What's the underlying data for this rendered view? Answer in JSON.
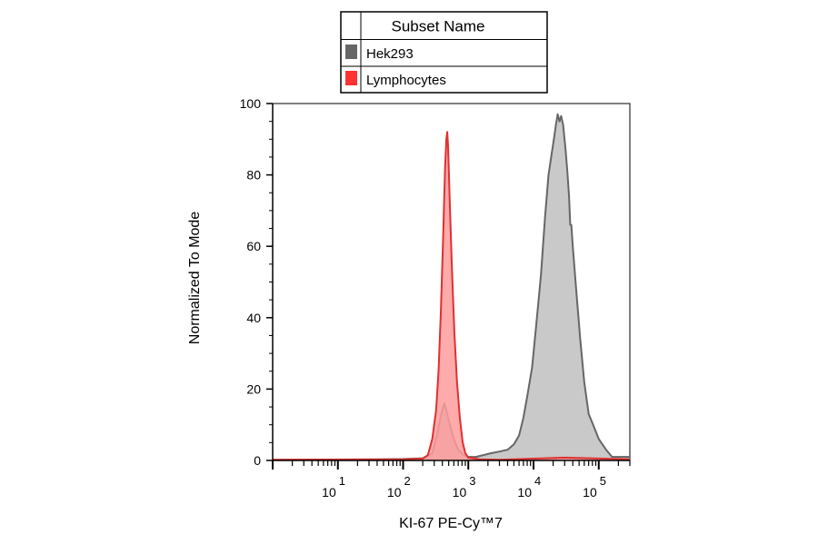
{
  "chart_data": {
    "type": "area",
    "xlabel": "KI-67 PE-Cy™7",
    "ylabel": "Normalized To Mode",
    "x_scale": "log",
    "xlim": [
      1,
      300000
    ],
    "ylim": [
      0,
      100
    ],
    "y_ticks": [
      0,
      20,
      40,
      60,
      80,
      100
    ],
    "x_tick_labels": [
      {
        "base": "10",
        "exp": "1",
        "value": 10
      },
      {
        "base": "10",
        "exp": "2",
        "value": 100
      },
      {
        "base": "10",
        "exp": "3",
        "value": 1000
      },
      {
        "base": "10",
        "exp": "4",
        "value": 10000
      },
      {
        "base": "10",
        "exp": "5",
        "value": 100000
      }
    ],
    "grid": false,
    "legend": {
      "header": "Subset Name",
      "placement": "top-center",
      "entries": [
        {
          "label": "Hek293",
          "color": "#666666"
        },
        {
          "label": "Lymphocytes",
          "color": "#ff3333"
        }
      ]
    },
    "series": [
      {
        "name": "Hek293",
        "stroke": "#666666",
        "fill": "#c0c0c0",
        "points": [
          [
            1,
            0.2
          ],
          [
            40,
            0.3
          ],
          [
            100,
            0.4
          ],
          [
            200,
            0.6
          ],
          [
            280,
            2
          ],
          [
            330,
            7
          ],
          [
            380,
            12.5
          ],
          [
            410,
            15
          ],
          [
            430,
            16
          ],
          [
            460,
            14
          ],
          [
            520,
            10
          ],
          [
            600,
            6
          ],
          [
            700,
            3
          ],
          [
            850,
            1.5
          ],
          [
            1000,
            1
          ],
          [
            1300,
            1
          ],
          [
            1700,
            1.5
          ],
          [
            2200,
            2
          ],
          [
            3000,
            2.5
          ],
          [
            4000,
            3
          ],
          [
            5000,
            4.5
          ],
          [
            6000,
            7
          ],
          [
            7000,
            12
          ],
          [
            8000,
            18
          ],
          [
            9500,
            26
          ],
          [
            11000,
            38
          ],
          [
            13000,
            52
          ],
          [
            15000,
            68
          ],
          [
            17000,
            80
          ],
          [
            19000,
            86
          ],
          [
            20500,
            90
          ],
          [
            22000,
            94
          ],
          [
            23500,
            97
          ],
          [
            25000,
            95
          ],
          [
            26500,
            96.5
          ],
          [
            28500,
            94
          ],
          [
            31000,
            87
          ],
          [
            33000,
            81
          ],
          [
            35000,
            74
          ],
          [
            36500,
            66
          ],
          [
            38000,
            66
          ],
          [
            40000,
            60
          ],
          [
            45000,
            48
          ],
          [
            52000,
            34
          ],
          [
            60000,
            22
          ],
          [
            70000,
            13
          ],
          [
            82000,
            10
          ],
          [
            100000,
            6
          ],
          [
            130000,
            3
          ],
          [
            160000,
            1
          ],
          [
            300000,
            1
          ]
        ]
      },
      {
        "name": "Lymphocytes",
        "stroke": "#e03030",
        "fill": "#ff9c9c",
        "points": [
          [
            1,
            0.2
          ],
          [
            100,
            0.3
          ],
          [
            200,
            0.5
          ],
          [
            240,
            1.5
          ],
          [
            280,
            6
          ],
          [
            320,
            14
          ],
          [
            350,
            25
          ],
          [
            380,
            42
          ],
          [
            410,
            62
          ],
          [
            440,
            82
          ],
          [
            460,
            90
          ],
          [
            475,
            92
          ],
          [
            490,
            88
          ],
          [
            520,
            72
          ],
          [
            560,
            54
          ],
          [
            610,
            36
          ],
          [
            670,
            22
          ],
          [
            740,
            12
          ],
          [
            820,
            5
          ],
          [
            900,
            2
          ],
          [
            1000,
            0.8
          ],
          [
            1500,
            0.3
          ],
          [
            3000,
            0.2
          ],
          [
            30000,
            0.8
          ],
          [
            300000,
            0.3
          ]
        ]
      }
    ]
  }
}
